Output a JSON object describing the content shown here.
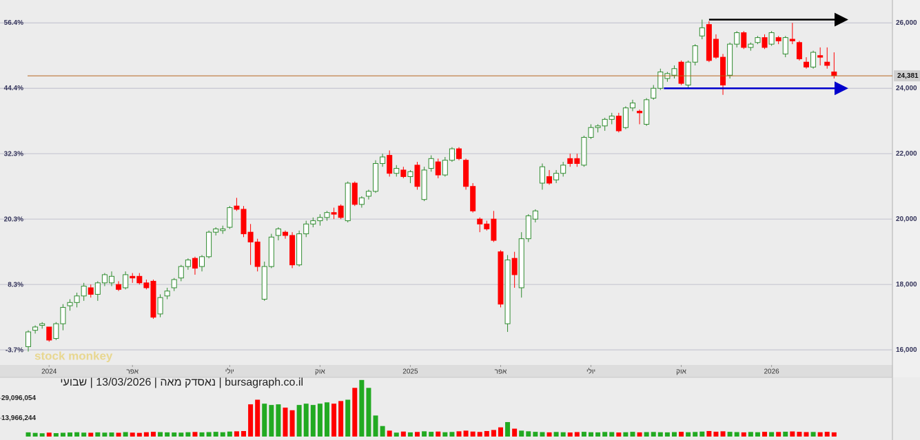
{
  "chart_data": {
    "type": "candlestick",
    "footer": "bursagraph.co.il | נאסדק מאה | 13/03/2026 | שבועי",
    "watermark": "stock monkey",
    "up_color": "#2e8b2e",
    "down_color": "#ff0000",
    "xlim": [
      -0.3,
      124.4
    ],
    "xticks": [
      {
        "value": 3,
        "label": "2024"
      },
      {
        "value": 15,
        "label": "אפר"
      },
      {
        "value": 29,
        "label": "יולי"
      },
      {
        "value": 42,
        "label": "אוק"
      },
      {
        "value": 55,
        "label": "2025"
      },
      {
        "value": 68,
        "label": "אפר"
      },
      {
        "value": 81,
        "label": "יולי"
      },
      {
        "value": 94,
        "label": "אוק"
      },
      {
        "value": 107,
        "label": "2026"
      }
    ],
    "ylim": [
      15540,
      26700
    ],
    "yticks": [
      {
        "value": 26000,
        "label": "26,000"
      },
      {
        "value": 24000,
        "label": "24,000"
      },
      {
        "value": 22000,
        "label": "22,000"
      },
      {
        "value": 20000,
        "label": "20,000"
      },
      {
        "value": 18000,
        "label": "18,000"
      },
      {
        "value": 16000,
        "label": "16,000"
      }
    ],
    "y2lim": [
      -6.4,
      60.6
    ],
    "y2ticks": [
      {
        "value": 56.4,
        "label": "56.4%"
      },
      {
        "value": 44.4,
        "label": "44.4%"
      },
      {
        "value": 32.3,
        "label": "32.3%"
      },
      {
        "value": 20.3,
        "label": "20.3%"
      },
      {
        "value": 8.3,
        "label": "8.3%"
      },
      {
        "value": -3.7,
        "label": "-3.7%"
      }
    ],
    "grid": true,
    "last_price": {
      "value": 24381,
      "label": "24,381",
      "color": "#b5651d"
    },
    "trend_lines": [
      {
        "value": 26100,
        "from": 98,
        "to": 117.8,
        "color": "#000000"
      },
      {
        "value": 24000,
        "from": 91.5,
        "to": 117.8,
        "color": "#0000cc"
      }
    ],
    "ohlc": [
      [
        16100,
        16600,
        15950,
        16550
      ],
      [
        16600,
        16750,
        16500,
        16700
      ],
      [
        16750,
        16850,
        16650,
        16800
      ],
      [
        16700,
        16700,
        16250,
        16300
      ],
      [
        16350,
        16850,
        16300,
        16800
      ],
      [
        16800,
        17400,
        16600,
        17300
      ],
      [
        17350,
        17550,
        17200,
        17450
      ],
      [
        17450,
        17750,
        17300,
        17650
      ],
      [
        17650,
        18050,
        17500,
        17950
      ],
      [
        17900,
        18000,
        17600,
        17700
      ],
      [
        17700,
        18100,
        17500,
        18050
      ],
      [
        18050,
        18350,
        17950,
        18300
      ],
      [
        18050,
        18400,
        17950,
        18250
      ],
      [
        18000,
        18100,
        17800,
        17850
      ],
      [
        17900,
        18400,
        17850,
        18300
      ],
      [
        18250,
        18350,
        18050,
        18200
      ],
      [
        18250,
        18350,
        18000,
        18050
      ],
      [
        18050,
        18150,
        17850,
        17900
      ],
      [
        18100,
        18150,
        16950,
        17000
      ],
      [
        17100,
        17700,
        17000,
        17600
      ],
      [
        17650,
        17900,
        17550,
        17800
      ],
      [
        17900,
        18200,
        17800,
        18150
      ],
      [
        18200,
        18600,
        18100,
        18550
      ],
      [
        18550,
        18800,
        18450,
        18750
      ],
      [
        18800,
        18850,
        18300,
        18500
      ],
      [
        18550,
        18900,
        18400,
        18850
      ],
      [
        18850,
        19650,
        18800,
        19600
      ],
      [
        19600,
        19750,
        19500,
        19700
      ],
      [
        19650,
        19800,
        19550,
        19700
      ],
      [
        19750,
        20400,
        19700,
        20350
      ],
      [
        20400,
        20650,
        20250,
        20300
      ],
      [
        20300,
        20400,
        19450,
        19550
      ],
      [
        19600,
        19850,
        18600,
        19300
      ],
      [
        19300,
        19400,
        18400,
        18550
      ],
      [
        17550,
        18700,
        17500,
        18550
      ],
      [
        18550,
        19550,
        18500,
        19450
      ],
      [
        19500,
        19750,
        19350,
        19700
      ],
      [
        19600,
        19650,
        19400,
        19500
      ],
      [
        19500,
        19600,
        18500,
        18600
      ],
      [
        18600,
        19650,
        18550,
        19550
      ],
      [
        19550,
        19950,
        19450,
        19850
      ],
      [
        19850,
        20050,
        19750,
        19950
      ],
      [
        19950,
        20150,
        19800,
        20050
      ],
      [
        20050,
        20250,
        19950,
        20200
      ],
      [
        20200,
        20350,
        20000,
        20150
      ],
      [
        20400,
        20450,
        20000,
        20050
      ],
      [
        19950,
        21150,
        19900,
        21100
      ],
      [
        21100,
        21150,
        20400,
        20450
      ],
      [
        20450,
        20700,
        20350,
        20650
      ],
      [
        20700,
        20900,
        20600,
        20850
      ],
      [
        20850,
        21800,
        20800,
        21700
      ],
      [
        21700,
        22000,
        21600,
        21900
      ],
      [
        21950,
        22100,
        21300,
        21400
      ],
      [
        21400,
        21650,
        21300,
        21550
      ],
      [
        21500,
        21600,
        21250,
        21300
      ],
      [
        21300,
        21500,
        21100,
        21450
      ],
      [
        21650,
        21750,
        20900,
        21000
      ],
      [
        20600,
        21600,
        20550,
        21500
      ],
      [
        21550,
        21950,
        21450,
        21850
      ],
      [
        21750,
        21850,
        21250,
        21350
      ],
      [
        21350,
        21900,
        21300,
        21800
      ],
      [
        21800,
        22200,
        21750,
        22150
      ],
      [
        22150,
        22200,
        21800,
        21850
      ],
      [
        21800,
        21850,
        20900,
        21000
      ],
      [
        21000,
        21100,
        20200,
        20250
      ],
      [
        20000,
        20050,
        19600,
        19850
      ],
      [
        19850,
        19950,
        19650,
        19700
      ],
      [
        20000,
        20250,
        19300,
        19350
      ],
      [
        19000,
        19050,
        17300,
        17400
      ],
      [
        16800,
        18900,
        16550,
        18750
      ],
      [
        18800,
        19000,
        17900,
        18300
      ],
      [
        17900,
        19600,
        17600,
        19400
      ],
      [
        19400,
        20150,
        19300,
        20100
      ],
      [
        20000,
        20300,
        19900,
        20250
      ],
      [
        21100,
        21700,
        20900,
        21600
      ],
      [
        21300,
        21500,
        21050,
        21100
      ],
      [
        21200,
        21500,
        21100,
        21400
      ],
      [
        21400,
        21750,
        21300,
        21650
      ],
      [
        21850,
        22000,
        21600,
        21700
      ],
      [
        21850,
        22000,
        21600,
        21700
      ],
      [
        21650,
        22550,
        21600,
        22500
      ],
      [
        22500,
        22900,
        22450,
        22800
      ],
      [
        22800,
        22900,
        22650,
        22850
      ],
      [
        22850,
        23100,
        22700,
        23050
      ],
      [
        23050,
        23250,
        22900,
        23150
      ],
      [
        23150,
        23250,
        22650,
        22700
      ],
      [
        22800,
        23450,
        22750,
        23400
      ],
      [
        23400,
        23650,
        23300,
        23550
      ],
      [
        23300,
        23350,
        22900,
        23250
      ],
      [
        22900,
        23700,
        22850,
        23650
      ],
      [
        23700,
        24100,
        23650,
        24000
      ],
      [
        24000,
        24600,
        23950,
        24500
      ],
      [
        24300,
        24500,
        24200,
        24450
      ],
      [
        24400,
        24700,
        24300,
        24600
      ],
      [
        24800,
        24850,
        24100,
        24150
      ],
      [
        24100,
        24850,
        24000,
        24800
      ],
      [
        24800,
        25350,
        24700,
        25300
      ],
      [
        25600,
        26100,
        25500,
        25850
      ],
      [
        25950,
        26050,
        24800,
        24850
      ],
      [
        25500,
        25650,
        24900,
        24950
      ],
      [
        24950,
        25050,
        23800,
        24100
      ],
      [
        24400,
        25400,
        24300,
        25350
      ],
      [
        25350,
        25750,
        25250,
        25700
      ],
      [
        25700,
        25750,
        25200,
        25250
      ],
      [
        25250,
        25400,
        25150,
        25350
      ],
      [
        25400,
        25600,
        25350,
        25550
      ],
      [
        25550,
        25650,
        25200,
        25250
      ],
      [
        25350,
        25750,
        25300,
        25700
      ],
      [
        25550,
        25600,
        25350,
        25450
      ],
      [
        25050,
        25600,
        24950,
        25550
      ],
      [
        25500,
        26000,
        25350,
        25450
      ],
      [
        25400,
        25450,
        24850,
        24900
      ],
      [
        24800,
        24950,
        24600,
        24650
      ],
      [
        24650,
        25150,
        24600,
        25100
      ],
      [
        25000,
        25250,
        24700,
        24950
      ],
      [
        24800,
        25250,
        24600,
        24700
      ],
      [
        24500,
        25100,
        24300,
        24381
      ]
    ],
    "volume": [
      3200000,
      2800000,
      2500000,
      3000000,
      2600000,
      2900000,
      3100000,
      3300000,
      3000000,
      2900000,
      3200000,
      3000000,
      3100000,
      2900000,
      3400000,
      3000000,
      2800000,
      3300000,
      3600000,
      3400000,
      3200000,
      3100000,
      3000000,
      3300000,
      3500000,
      3200000,
      3400000,
      3600000,
      3300000,
      3800000,
      4000000,
      4200000,
      24500000,
      28000000,
      25000000,
      24000000,
      24500000,
      22000000,
      20000000,
      24000000,
      25000000,
      24000000,
      25000000,
      26000000,
      25000000,
      27000000,
      28000000,
      37000000,
      43000000,
      37000000,
      16000000,
      8000000,
      4500000,
      3000000,
      3800000,
      3200000,
      3500000,
      4000000,
      3600000,
      3800000,
      3300000,
      3500000,
      4000000,
      4500000,
      3800000,
      3500000,
      4200000,
      5000000,
      7000000,
      11000000,
      6000000,
      4500000,
      4000000,
      3600000,
      3400000,
      3200000,
      3500000,
      3300000,
      3100000,
      3400000,
      3600000,
      3300000,
      3200000,
      3500000,
      3400000,
      3100000,
      3300000,
      3600000,
      3200000,
      3400000,
      3500000,
      3300000,
      3200000,
      3400000,
      3600000,
      3300000,
      3500000,
      3800000,
      4200000,
      3700000,
      4000000,
      3600000,
      3400000,
      3200000,
      3500000,
      3300000,
      3600000,
      3400000,
      3500000,
      3700000,
      3900000,
      3600000,
      3400000,
      3500000,
      3300000,
      3600000,
      3200000
    ],
    "vlim": [
      0,
      45000000
    ],
    "vticks": [
      {
        "value": 29096054,
        "label": "29,096,054"
      },
      {
        "value": 13966244,
        "label": "13,966,244"
      }
    ]
  }
}
